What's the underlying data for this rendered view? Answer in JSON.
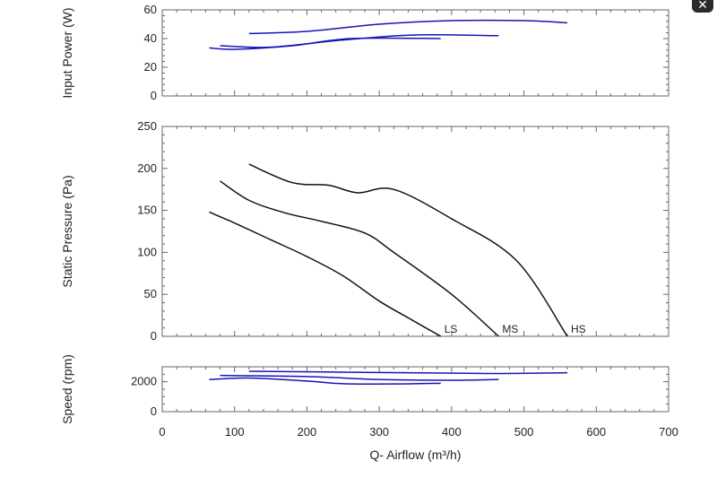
{
  "close_button": {
    "glyph": "✕"
  },
  "chart_data": [
    {
      "type": "line",
      "ylabel": "Input Power (W)",
      "xlim": [
        0,
        700
      ],
      "ylim": [
        0,
        60
      ],
      "yticks": [
        0,
        20,
        40,
        60
      ],
      "grid": false,
      "line_color": "#1515b8",
      "series": [
        {
          "points": [
            [
              120,
              43.5
            ],
            [
              200,
              45
            ],
            [
              300,
              50
            ],
            [
              400,
              52.5
            ],
            [
              500,
              52.5
            ],
            [
              560,
              51
            ]
          ]
        },
        {
          "points": [
            [
              80,
              35
            ],
            [
              150,
              34
            ],
            [
              250,
              39
            ],
            [
              350,
              42.5
            ],
            [
              465,
              42
            ]
          ]
        },
        {
          "points": [
            [
              65,
              33.5
            ],
            [
              100,
              32.5
            ],
            [
              180,
              35
            ],
            [
              260,
              40
            ],
            [
              385,
              40
            ]
          ]
        }
      ]
    },
    {
      "type": "line",
      "ylabel": "Static Pressure (Pa)",
      "xlim": [
        0,
        700
      ],
      "ylim": [
        0,
        250
      ],
      "yticks": [
        0,
        50,
        100,
        150,
        200,
        250
      ],
      "grid": false,
      "line_color": "#111111",
      "series": [
        {
          "name": "HS",
          "points": [
            [
              120,
              205
            ],
            [
              180,
              183
            ],
            [
              230,
              180
            ],
            [
              270,
              171
            ],
            [
              320,
              175
            ],
            [
              400,
              140
            ],
            [
              490,
              90
            ],
            [
              560,
              0
            ]
          ]
        },
        {
          "name": "MS",
          "points": [
            [
              80,
              185
            ],
            [
              120,
              162
            ],
            [
              170,
              147
            ],
            [
              220,
              137
            ],
            [
              280,
              123
            ],
            [
              320,
              100
            ],
            [
              400,
              50
            ],
            [
              465,
              0
            ]
          ]
        },
        {
          "name": "LS",
          "points": [
            [
              65,
              148
            ],
            [
              100,
              135
            ],
            [
              150,
              115
            ],
            [
              200,
              95
            ],
            [
              250,
              72
            ],
            [
              300,
              42
            ],
            [
              340,
              22
            ],
            [
              385,
              0
            ]
          ]
        }
      ]
    },
    {
      "type": "line",
      "ylabel": "Speed (rpm)",
      "xlabel": "Q- Airflow (m³/h)",
      "xlim": [
        0,
        700
      ],
      "xticks": [
        0,
        100,
        200,
        300,
        400,
        500,
        600,
        700
      ],
      "ylim": [
        0,
        3000
      ],
      "yticks": [
        0,
        2000
      ],
      "grid": false,
      "line_color": "#1515b8",
      "series": [
        {
          "points": [
            [
              120,
              2700
            ],
            [
              300,
              2620
            ],
            [
              450,
              2550
            ],
            [
              560,
              2600
            ]
          ]
        },
        {
          "points": [
            [
              80,
              2420
            ],
            [
              200,
              2350
            ],
            [
              300,
              2150
            ],
            [
              400,
              2100
            ],
            [
              465,
              2150
            ]
          ]
        },
        {
          "points": [
            [
              65,
              2150
            ],
            [
              120,
              2250
            ],
            [
              200,
              2050
            ],
            [
              250,
              1870
            ],
            [
              320,
              1850
            ],
            [
              385,
              1900
            ]
          ]
        }
      ]
    }
  ]
}
